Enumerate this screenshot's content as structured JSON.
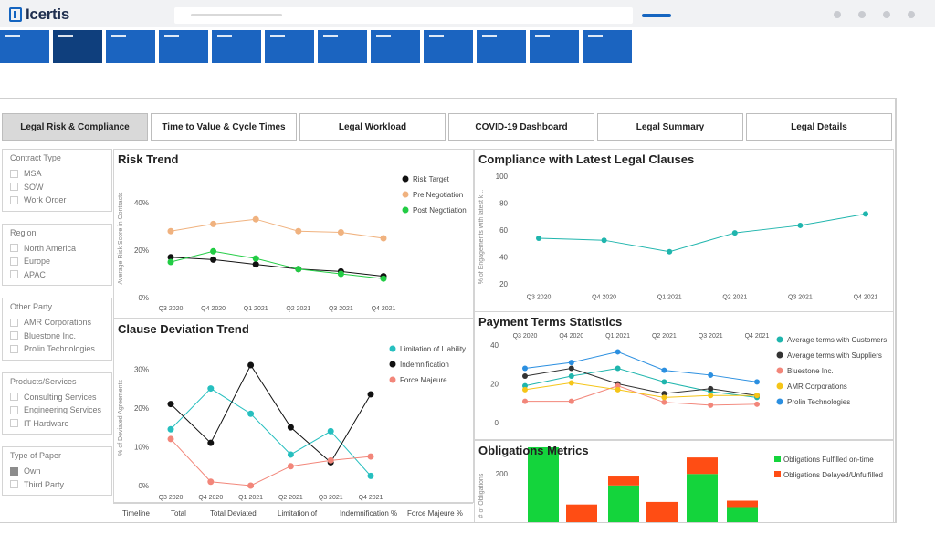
{
  "brand": {
    "name": "Icertis"
  },
  "tabs": [
    {
      "label": "Legal Risk & Compliance",
      "active": true
    },
    {
      "label": "Time to Value & Cycle Times",
      "active": false
    },
    {
      "label": "Legal Workload",
      "active": false
    },
    {
      "label": "COVID-19 Dashboard",
      "active": false
    },
    {
      "label": "Legal Summary",
      "active": false
    },
    {
      "label": "Legal Details",
      "active": false
    }
  ],
  "filters": [
    {
      "title": "Contract Type",
      "options": [
        {
          "label": "MSA",
          "checked": false
        },
        {
          "label": "SOW",
          "checked": false
        },
        {
          "label": "Work Order",
          "checked": false
        }
      ]
    },
    {
      "title": "Region",
      "options": [
        {
          "label": "North America",
          "checked": false
        },
        {
          "label": "Europe",
          "checked": false
        },
        {
          "label": "APAC",
          "checked": false
        }
      ]
    },
    {
      "title": "Other Party",
      "options": [
        {
          "label": "AMR Corporations",
          "checked": false
        },
        {
          "label": "Bluestone Inc.",
          "checked": false
        },
        {
          "label": "Prolin Technologies",
          "checked": false
        }
      ]
    },
    {
      "title": "Products/Services",
      "options": [
        {
          "label": "Consulting Services",
          "checked": false
        },
        {
          "label": "Engineering Services",
          "checked": false
        },
        {
          "label": "IT Hardware",
          "checked": false
        }
      ]
    },
    {
      "title": "Type of Paper",
      "options": [
        {
          "label": "Own",
          "checked": true
        },
        {
          "label": "Third Party",
          "checked": false
        }
      ]
    }
  ],
  "table_footer": {
    "columns": [
      "Timeline",
      "Total",
      "Total Deviated",
      "Limitation of",
      "Indemnification %",
      "Force Majeure %"
    ]
  },
  "chart_data": [
    {
      "id": "risk-trend",
      "type": "line",
      "title": "Risk Trend",
      "ylabel": "Average Risk Score in Contracts",
      "categories": [
        "Q3 2020",
        "Q4 2020",
        "Q1 2021",
        "Q2 2021",
        "Q3 2021",
        "Q4 2021"
      ],
      "ylim": [
        0,
        50
      ],
      "yticks": [
        0,
        20,
        40
      ],
      "yformat": "percent",
      "legend": "top-right",
      "series": [
        {
          "name": "Risk Target",
          "color": "#111111",
          "values": [
            17,
            16,
            14,
            12,
            11,
            9
          ]
        },
        {
          "name": "Pre Negotiation",
          "color": "#f0b27f",
          "values": [
            28,
            31,
            33,
            28,
            27.5,
            25
          ]
        },
        {
          "name": "Post Negotiation",
          "color": "#22cc44",
          "values": [
            15,
            19.5,
            16.5,
            12,
            10,
            8
          ]
        }
      ]
    },
    {
      "id": "compliance",
      "type": "line",
      "title": "Compliance with Latest Legal Clauses",
      "ylabel": "% of Engagements with latest k...",
      "categories": [
        "Q3 2020",
        "Q4 2020",
        "Q1 2021",
        "Q2 2021",
        "Q3 2021",
        "Q4 2021"
      ],
      "ylim": [
        10,
        100
      ],
      "yticks": [
        20,
        40,
        60,
        80,
        100
      ],
      "yformat": "number",
      "series": [
        {
          "name": "",
          "color": "#1fb5ad",
          "values": [
            54,
            52.5,
            44,
            58,
            63.5,
            72
          ]
        }
      ]
    },
    {
      "id": "clause-deviation",
      "type": "line",
      "title": "Clause Deviation Trend",
      "ylabel": "% of Deviated Agreements",
      "categories": [
        "Q3 2020",
        "Q4 2020",
        "Q1 2021",
        "Q2 2021",
        "Q3 2021",
        "Q4 2021"
      ],
      "ylim": [
        0,
        35
      ],
      "yticks": [
        0,
        10,
        20,
        30
      ],
      "yformat": "percent",
      "legend": "top-right",
      "series": [
        {
          "name": "Limitation of Liability",
          "color": "#26bfbf",
          "values": [
            14.5,
            25,
            18.5,
            8,
            14,
            2.5
          ]
        },
        {
          "name": "Indemnification",
          "color": "#111111",
          "values": [
            21,
            11,
            31,
            15,
            6,
            23.5
          ]
        },
        {
          "name": "Force Majeure",
          "color": "#f2867a",
          "values": [
            12,
            1,
            0,
            5,
            6.5,
            7.5
          ]
        }
      ]
    },
    {
      "id": "payment-terms",
      "type": "line",
      "title": "Payment  Terms Statistics",
      "categories": [
        "Q3 2020",
        "Q4 2020",
        "Q1 2021",
        "Q2 2021",
        "Q3 2021",
        "Q4 2021"
      ],
      "ylim": [
        0,
        48
      ],
      "yticks": [
        0,
        20,
        40
      ],
      "yformat": "number",
      "legend": "right",
      "series": [
        {
          "name": "Average terms with Customers",
          "color": "#1fb5ad",
          "values": [
            19,
            24,
            28,
            21,
            16,
            13
          ]
        },
        {
          "name": "Average terms with Suppliers",
          "color": "#333333",
          "values": [
            24,
            28,
            20,
            15,
            17.5,
            14
          ]
        },
        {
          "name": "Bluestone Inc.",
          "color": "#f2867a",
          "values": [
            11,
            11,
            19,
            10.5,
            9,
            9.5
          ]
        },
        {
          "name": "AMR Corporations",
          "color": "#f5c518",
          "values": [
            17,
            20.5,
            17,
            13,
            14,
            14
          ]
        },
        {
          "name": "Prolin Technologies",
          "color": "#2b8fe0",
          "values": [
            28,
            31,
            36.5,
            27,
            24.5,
            21
          ]
        }
      ]
    },
    {
      "id": "obligations",
      "type": "bar",
      "title": "Obligations Metrics",
      "ylabel": "# of Obligations",
      "stacked": true,
      "yticks": [
        200
      ],
      "ymax": 330,
      "legend": "right",
      "series": [
        {
          "name": "Obligations Fulfilled on-time",
          "color": "#14d43c",
          "values": [
            305,
            0,
            155,
            0,
            200,
            70
          ]
        },
        {
          "name": "Obligations Delayed/Unfulfilled",
          "color": "#ff4d14",
          "values": [
            0,
            80,
            35,
            90,
            65,
            25
          ]
        }
      ]
    }
  ]
}
